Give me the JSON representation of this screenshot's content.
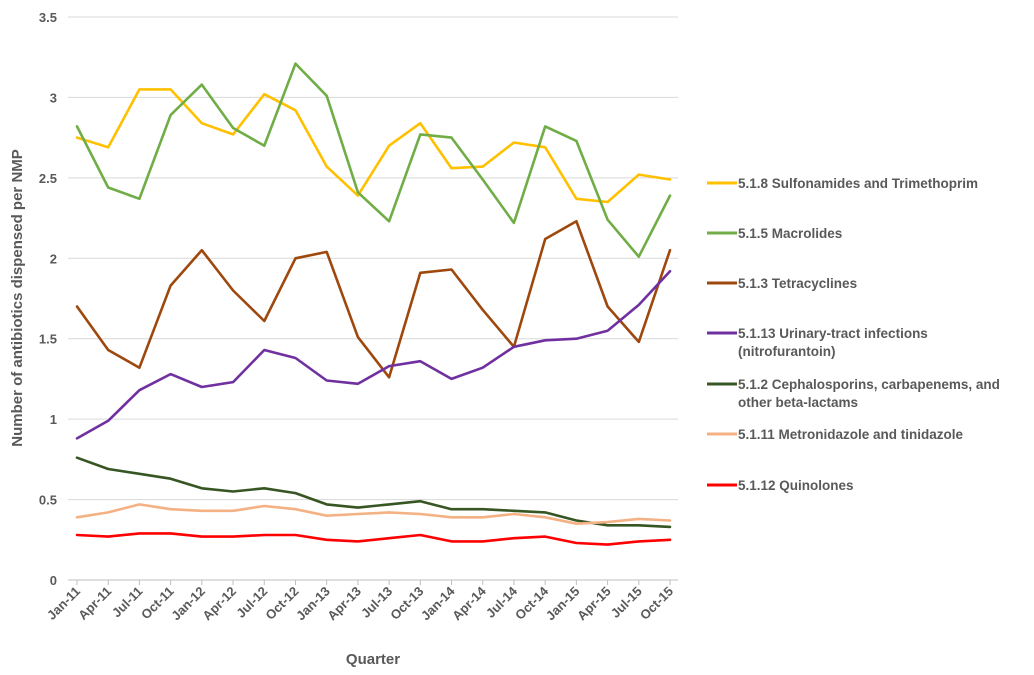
{
  "chart_data": {
    "type": "line",
    "title": "",
    "xlabel": "Quarter",
    "ylabel": "Number of antibiotics dispensed per NMP",
    "ylim": [
      0,
      3.5
    ],
    "yticks": [
      "0",
      "0.5",
      "1",
      "1.5",
      "2",
      "2.5",
      "3",
      "3.5"
    ],
    "ytick_values": [
      0,
      0.5,
      1,
      1.5,
      2,
      2.5,
      3,
      3.5
    ],
    "grid": true,
    "legend_position": "right",
    "categories": [
      "Jan-11",
      "Apr-11",
      "Jul-11",
      "Oct-11",
      "Jan-12",
      "Apr-12",
      "Jul-12",
      "Oct-12",
      "Jan-13",
      "Apr-13",
      "Jul-13",
      "Oct-13",
      "Jan-14",
      "Apr-14",
      "Jul-14",
      "Oct-14",
      "Jan-15",
      "Apr-15",
      "Jul-15",
      "Oct-15"
    ],
    "series": [
      {
        "name": "5.1.8 Sulfonamides and Trimethoprim",
        "color": "#ffc000",
        "values": [
          2.75,
          2.69,
          3.05,
          3.05,
          2.84,
          2.77,
          3.02,
          2.92,
          2.57,
          2.39,
          2.7,
          2.84,
          2.56,
          2.57,
          2.72,
          2.69,
          2.37,
          2.35,
          2.52,
          2.49
        ]
      },
      {
        "name": "5.1.5 Macrolides",
        "color": "#70ad47",
        "values": [
          2.82,
          2.44,
          2.37,
          2.89,
          3.08,
          2.81,
          2.7,
          3.21,
          3.01,
          2.41,
          2.23,
          2.77,
          2.75,
          2.49,
          2.22,
          2.82,
          2.73,
          2.24,
          2.01,
          2.39
        ]
      },
      {
        "name": "5.1.3 Tetracyclines",
        "color": "#9e480e",
        "values": [
          1.7,
          1.43,
          1.32,
          1.83,
          2.05,
          1.8,
          1.61,
          2.0,
          2.04,
          1.51,
          1.26,
          1.91,
          1.93,
          1.68,
          1.45,
          2.12,
          2.23,
          1.7,
          1.48,
          2.05
        ]
      },
      {
        "name": "5.1.13 Urinary-tract infections (nitrofurantoin)",
        "label_lines": [
          "5.1.13 Urinary-tract infections",
          "(nitrofurantoin)"
        ],
        "color": "#7030a0",
        "values": [
          0.88,
          0.99,
          1.18,
          1.28,
          1.2,
          1.23,
          1.43,
          1.38,
          1.24,
          1.22,
          1.33,
          1.36,
          1.25,
          1.32,
          1.45,
          1.49,
          1.5,
          1.55,
          1.71,
          1.92
        ]
      },
      {
        "name": "5.1.2 Cephalosporins, carbapenems, and other beta-lactams",
        "label_lines": [
          "5.1.2 Cephalosporins, carbapenems, and",
          "other beta-lactams"
        ],
        "color": "#375623",
        "values": [
          0.76,
          0.69,
          0.66,
          0.63,
          0.57,
          0.55,
          0.57,
          0.54,
          0.47,
          0.45,
          0.47,
          0.49,
          0.44,
          0.44,
          0.43,
          0.42,
          0.37,
          0.34,
          0.34,
          0.33
        ]
      },
      {
        "name": "5.1.11 Metronidazole and tinidazole",
        "color": "#f4b183",
        "values": [
          0.39,
          0.42,
          0.47,
          0.44,
          0.43,
          0.43,
          0.46,
          0.44,
          0.4,
          0.41,
          0.42,
          0.41,
          0.39,
          0.39,
          0.41,
          0.39,
          0.35,
          0.36,
          0.38,
          0.37
        ]
      },
      {
        "name": "5.1.12 Quinolones",
        "color": "#ff0000",
        "values": [
          0.28,
          0.27,
          0.29,
          0.29,
          0.27,
          0.27,
          0.28,
          0.28,
          0.25,
          0.24,
          0.26,
          0.28,
          0.24,
          0.24,
          0.26,
          0.27,
          0.23,
          0.22,
          0.24,
          0.25
        ]
      }
    ]
  }
}
